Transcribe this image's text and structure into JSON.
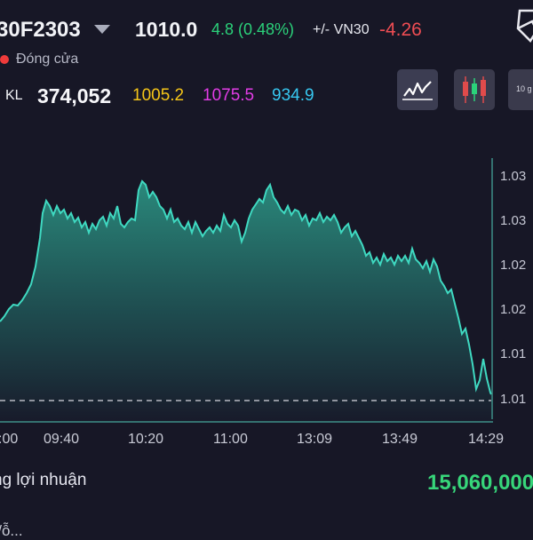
{
  "header": {
    "symbol": "30F2303",
    "price": "1010.0",
    "change": "4.8 (0.48%)",
    "vn30_label": "+/- VN30",
    "vn30_value": "-4.26"
  },
  "status": {
    "text": "Đóng cửa",
    "dot_color": "#ef3b3b"
  },
  "stats": {
    "kl_label": "KL",
    "kl_value": "374,052",
    "ma_values": [
      "1005.2",
      "1075.5",
      "934.9"
    ],
    "ma_colors": [
      "#f5c518",
      "#e23ce6",
      "#37c8f1"
    ]
  },
  "toolbar": {
    "line_chart_icon": "line-chart-icon",
    "candle_chart_icon": "candlestick-icon",
    "interval_label": "10 g"
  },
  "chart_data": {
    "type": "area",
    "y_tick_labels": [
      "1.03",
      "1.03",
      "1.02",
      "1.02",
      "1.01",
      "1.01"
    ],
    "x_tick_labels": [
      ":00",
      "09:40",
      "10:20",
      "11:00",
      "13:09",
      "13:49",
      "14:29"
    ],
    "reference_line": "dashed",
    "line_color": "#3fd9c1"
  },
  "summary": {
    "profit_label": "ng lợi nhuận",
    "profit_value": "15,060,000",
    "next_row_cut": "'/ỗ..."
  }
}
